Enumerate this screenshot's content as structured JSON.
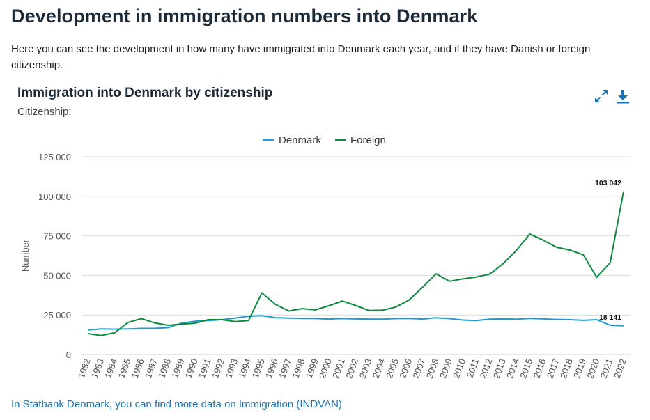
{
  "page": {
    "title": "Development in immigration numbers into Denmark",
    "intro": "Here you can see the development in how many have immigrated into Denmark each year, and if they have Danish or foreign citizenship."
  },
  "chart_header": {
    "title": "Immigration into Denmark by citizenship",
    "subtitle": "Citizenship:",
    "expand_icon": "expand-arrows-icon",
    "download_icon": "download-icon",
    "icon_color": "#1a73b5"
  },
  "footer": {
    "link_text": "In Statbank Denmark, you can find more data on Immigration (INDVAN)"
  },
  "chart_data": {
    "type": "line",
    "title": "Immigration into Denmark by citizenship",
    "ylabel": "Number",
    "xlabel": "",
    "ylim": [
      0,
      125000
    ],
    "yticks": [
      0,
      25000,
      50000,
      75000,
      100000,
      125000
    ],
    "ytick_labels": [
      "0",
      "25 000",
      "50 000",
      "75 000",
      "100 000",
      "125 000"
    ],
    "grid": true,
    "legend": "top-center",
    "categories": [
      "1982",
      "1983",
      "1984",
      "1985",
      "1986",
      "1987",
      "1988",
      "1989",
      "1990",
      "1991",
      "1992",
      "1993",
      "1994",
      "1995",
      "1996",
      "1997",
      "1998",
      "1999",
      "2000",
      "2001",
      "2002",
      "2003",
      "2004",
      "2005",
      "2006",
      "2007",
      "2008",
      "2009",
      "2010",
      "2011",
      "2012",
      "2013",
      "2014",
      "2015",
      "2016",
      "2017",
      "2018",
      "2019",
      "2020",
      "2021",
      "2022"
    ],
    "series": [
      {
        "name": "Denmark",
        "color": "#1f9bd1",
        "values": [
          15500,
          16200,
          16000,
          16200,
          16500,
          16500,
          17000,
          19800,
          21000,
          21500,
          22000,
          23000,
          24200,
          24500,
          23300,
          23000,
          22800,
          22700,
          22400,
          22700,
          22500,
          22400,
          22300,
          22700,
          22800,
          22400,
          23200,
          22700,
          21800,
          21500,
          22300,
          22500,
          22300,
          22800,
          22500,
          22200,
          22000,
          21600,
          22000,
          18500,
          18141
        ],
        "end_label": "18 141"
      },
      {
        "name": "Foreign",
        "color": "#0b8a3e",
        "values": [
          13200,
          12000,
          13700,
          20300,
          22700,
          20000,
          18500,
          19200,
          19800,
          22000,
          22000,
          20800,
          21500,
          39000,
          31800,
          27500,
          29000,
          28200,
          30800,
          33800,
          31000,
          27800,
          28000,
          30000,
          34500,
          42500,
          51000,
          46300,
          47800,
          49000,
          50800,
          57300,
          65800,
          76200,
          72300,
          67800,
          66000,
          63000,
          48800,
          58000,
          103042
        ],
        "end_label": "103 042"
      }
    ]
  }
}
